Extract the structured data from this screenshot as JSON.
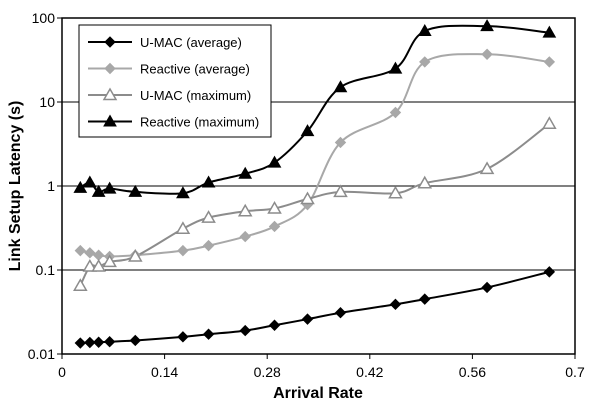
{
  "chart_data": {
    "type": "line",
    "title": "",
    "xlabel": "Arrival Rate",
    "ylabel": "Link Setup Latency (s)",
    "xlim": [
      0,
      0.7
    ],
    "ylim": [
      0.01,
      100
    ],
    "yscale": "log",
    "grid": "horizontal",
    "legend_position": "top-left",
    "x_ticks": [
      "0",
      "0.14",
      "0.28",
      "0.42",
      "0.56",
      "0.7"
    ],
    "x_tick_values": [
      0,
      0.14,
      0.28,
      0.42,
      0.56,
      0.7
    ],
    "y_ticks": [
      "0.01",
      "0.1",
      "1",
      "10",
      "100"
    ],
    "y_tick_values": [
      0.01,
      0.1,
      1,
      10,
      100
    ],
    "series": [
      {
        "name": "U-MAC (average)",
        "color": "#000000",
        "marker": "diamond",
        "filled": true,
        "x": [
          0.025,
          0.038,
          0.05,
          0.065,
          0.1,
          0.165,
          0.2,
          0.25,
          0.29,
          0.335,
          0.38,
          0.455,
          0.495,
          0.58,
          0.665
        ],
        "y": [
          0.0135,
          0.0137,
          0.0138,
          0.014,
          0.0145,
          0.016,
          0.0172,
          0.019,
          0.022,
          0.026,
          0.031,
          0.039,
          0.045,
          0.062,
          0.095
        ]
      },
      {
        "name": "Reactive (average)",
        "color": "#a8a8a8",
        "marker": "diamond",
        "filled": true,
        "x": [
          0.025,
          0.038,
          0.05,
          0.065,
          0.1,
          0.165,
          0.2,
          0.25,
          0.29,
          0.335,
          0.38,
          0.455,
          0.495,
          0.58,
          0.665
        ],
        "y": [
          0.17,
          0.16,
          0.15,
          0.145,
          0.15,
          0.17,
          0.195,
          0.25,
          0.33,
          0.6,
          3.3,
          7.5,
          30,
          37,
          30
        ]
      },
      {
        "name": "U-MAC (maximum)",
        "color": "#8c8c8c",
        "marker": "triangle",
        "filled": false,
        "x": [
          0.025,
          0.038,
          0.05,
          0.065,
          0.1,
          0.165,
          0.2,
          0.25,
          0.29,
          0.335,
          0.38,
          0.455,
          0.495,
          0.58,
          0.665
        ],
        "y": [
          0.065,
          0.11,
          0.11,
          0.125,
          0.145,
          0.31,
          0.42,
          0.5,
          0.54,
          0.7,
          0.85,
          0.82,
          1.08,
          1.6,
          5.5
        ]
      },
      {
        "name": "Reactive (maximum)",
        "color": "#000000",
        "marker": "triangle",
        "filled": true,
        "x": [
          0.025,
          0.038,
          0.05,
          0.065,
          0.1,
          0.165,
          0.2,
          0.25,
          0.29,
          0.335,
          0.38,
          0.455,
          0.495,
          0.58,
          0.665
        ],
        "y": [
          0.95,
          1.1,
          0.85,
          0.93,
          0.85,
          0.82,
          1.1,
          1.4,
          1.9,
          4.5,
          15,
          25,
          70,
          80,
          67
        ]
      }
    ]
  }
}
